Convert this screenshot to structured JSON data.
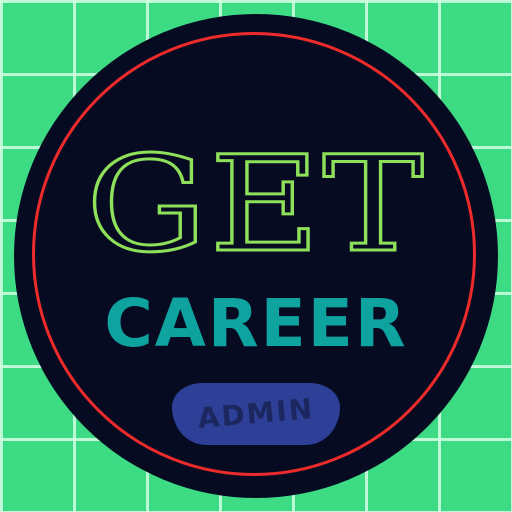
{
  "logo": {
    "title": "GET",
    "subtitle": "CAREER",
    "badge": "ADMIN"
  },
  "colors": {
    "background_green": "#3ddc84",
    "grid_lines": "#d6ffe4",
    "disc": "#070b22",
    "ring": "#ee2b2b",
    "title_green": "#8ee05a",
    "subtitle_teal": "#0fa3a0",
    "badge_fill": "#2d3f96",
    "badge_text": "#1c275f"
  }
}
